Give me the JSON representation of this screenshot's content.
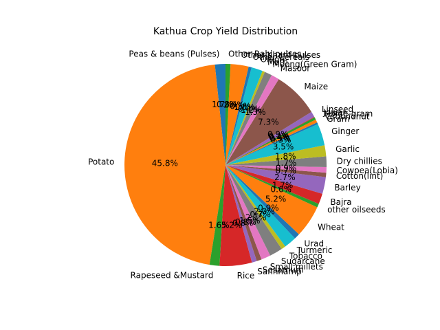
{
  "chart_data": {
    "type": "pie",
    "title": "Kathua Crop Yield Distribution",
    "start_angle_deg": 90,
    "direction": "counterclockwise",
    "autopct_decimals": 1,
    "colors": [
      "#1f77b4",
      "#ff7f0e",
      "#2ca02c",
      "#d62728",
      "#9467bd",
      "#8c564b",
      "#e377c2",
      "#7f7f7f",
      "#bcbd22",
      "#17becf"
    ],
    "slices": [
      {
        "label": "Peas & beans (Pulses)",
        "value": 1.7
      },
      {
        "label": "Potato",
        "value": 46.1
      },
      {
        "label": "Rapeseed &Mustard",
        "value": 1.6
      },
      {
        "label": "Rice",
        "value": 5.2
      },
      {
        "label": "Sannhamp",
        "value": 0.8
      },
      {
        "label": "Sesamum",
        "value": 0.8
      },
      {
        "label": "Small millets",
        "value": 1.5
      },
      {
        "label": "Sugarcane",
        "value": 2.1
      },
      {
        "label": "Tobacco",
        "value": 0.7
      },
      {
        "label": "Turmeric",
        "value": 2.0
      },
      {
        "label": "Urad",
        "value": 0.9
      },
      {
        "label": "Wheat",
        "value": 5.2
      },
      {
        "label": "other oilseeds",
        "value": 0.6
      },
      {
        "label": "Bajra",
        "value": 1.7
      },
      {
        "label": "Barley",
        "value": 2.7
      },
      {
        "label": "Cotton(lint)",
        "value": 0.7
      },
      {
        "label": "Cowpea(Lobia)",
        "value": 0.9
      },
      {
        "label": "Dry chillies",
        "value": 1.7
      },
      {
        "label": "Garlic",
        "value": 1.8
      },
      {
        "label": "Ginger",
        "value": 3.5
      },
      {
        "label": "Gram",
        "value": 0.3
      },
      {
        "label": "Groundnut",
        "value": 0.5
      },
      {
        "label": "Horse-gram",
        "value": 0.4
      },
      {
        "label": "Jowar",
        "value": 0.1
      },
      {
        "label": "Linseed",
        "value": 0.9
      },
      {
        "label": "Maize",
        "value": 7.4
      },
      {
        "label": "Masoor",
        "value": 1.3
      },
      {
        "label": "Moong(Green Gram)",
        "value": 1.2
      },
      {
        "label": "Moth",
        "value": 0.4
      },
      {
        "label": "Onion",
        "value": 1.8
      },
      {
        "label": "Other Cereals",
        "value": 0.5
      },
      {
        "label": "Other Kharif pulses",
        "value": 2.9
      },
      {
        "label": "Other Rabi pulses",
        "value": 0.8
      }
    ]
  }
}
